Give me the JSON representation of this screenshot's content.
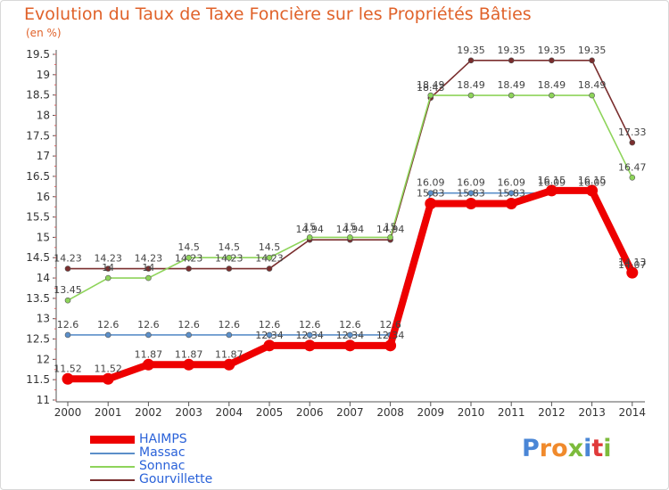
{
  "header": {
    "title": "Evolution du Taux de Taxe Foncière sur les Propriétés Bâties",
    "unit": "(en %)"
  },
  "brand": {
    "letters": [
      "P",
      "r",
      "o",
      "x",
      "i",
      "t",
      "i"
    ],
    "colors": [
      "#4a86d6",
      "#f08a2c",
      "#f08a2c",
      "#7dbb3c",
      "#4a86d6",
      "#e03a3a",
      "#7dbb3c"
    ]
  },
  "chart_data": {
    "type": "line",
    "title": "Evolution du Taux de Taxe Foncière sur les Propriétés Bâties",
    "ylabel": "(en %)",
    "xlabel": "",
    "ylim": [
      11,
      19.5
    ],
    "grid": false,
    "categories": [
      "2000",
      "2001",
      "2002",
      "2003",
      "2004",
      "2005",
      "2006",
      "2007",
      "2008",
      "2009",
      "2010",
      "2011",
      "2012",
      "2013",
      "2014"
    ],
    "y_ticks": [
      "11",
      "11.5",
      "12",
      "12.5",
      "13",
      "13.5",
      "14",
      "14.5",
      "15",
      "15.5",
      "16",
      "16.5",
      "17",
      "17.5",
      "18",
      "18.5",
      "19",
      "19.5"
    ],
    "series": [
      {
        "name": "HAIMPS",
        "color": "#ee0000",
        "values": [
          11.52,
          11.52,
          11.87,
          11.87,
          11.87,
          12.34,
          12.34,
          12.34,
          12.34,
          15.83,
          15.83,
          15.83,
          16.15,
          16.15,
          14.13
        ],
        "labels": [
          "11.52",
          "11.52",
          "11.87",
          "11.87",
          "11.87",
          "12.34",
          "12.34",
          "12.34",
          "12.34",
          "15.83",
          "15.83",
          "15.83",
          "16.15",
          "16.15",
          "14.13"
        ]
      },
      {
        "name": "Massac",
        "color": "#5b8fc9",
        "values": [
          12.6,
          12.6,
          12.6,
          12.6,
          12.6,
          12.6,
          12.6,
          12.6,
          12.6,
          16.09,
          16.09,
          16.09,
          16.09,
          16.09,
          14.07
        ],
        "labels": [
          "12.6",
          "12.6",
          "12.6",
          "12.6",
          "12.6",
          "12.6",
          "12.6",
          "12.6",
          "12.6",
          "16.09",
          "16.09",
          "16.09",
          "16.09",
          "16.09",
          "14.07"
        ]
      },
      {
        "name": "Sonnac",
        "color": "#8ed45a",
        "values": [
          13.45,
          14,
          14,
          14.5,
          14.5,
          14.5,
          15,
          15,
          15,
          18.49,
          18.49,
          18.49,
          18.49,
          18.49,
          16.47
        ],
        "labels": [
          "13.45",
          "14",
          "14",
          "14.5",
          "14.5",
          "14.5",
          "15",
          "15",
          "15",
          "18.49",
          "18.49",
          "18.49",
          "18.49",
          "18.49",
          "16.47"
        ]
      },
      {
        "name": "Gourvillette",
        "color": "#7a2e2e",
        "values": [
          14.23,
          14.23,
          14.23,
          14.23,
          14.23,
          14.23,
          14.94,
          14.94,
          14.94,
          18.43,
          19.35,
          19.35,
          19.35,
          19.35,
          17.33
        ],
        "labels": [
          "14.23",
          "14.23",
          "14.23",
          "14.23",
          "14.23",
          "14.23",
          "14.94",
          "14.94",
          "14.94",
          "18.43",
          "19.35",
          "19.35",
          "19.35",
          "19.35",
          "17.33"
        ]
      }
    ]
  }
}
